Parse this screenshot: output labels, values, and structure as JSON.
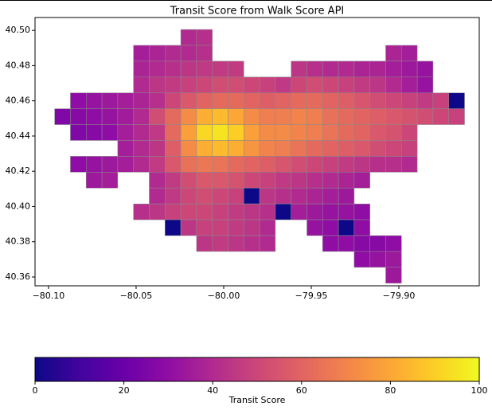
{
  "chart_data": {
    "type": "grid-map",
    "title": "Transit Score from Walk Score API",
    "colorbar_label": "Transit Score",
    "colormap": "plasma",
    "clim": [
      0,
      100
    ],
    "colorbar_ticks": [
      0,
      20,
      40,
      60,
      80,
      100
    ],
    "xlim": [
      -80.1077,
      -79.8541
    ],
    "ylim": [
      40.355,
      40.5073
    ],
    "xticks": [
      {
        "value": -80.1,
        "label": "−80.10"
      },
      {
        "value": -80.05,
        "label": "−80.05"
      },
      {
        "value": -80.0,
        "label": "−80.00"
      },
      {
        "value": -79.95,
        "label": "−79.95"
      },
      {
        "value": -79.9,
        "label": "−79.90"
      }
    ],
    "yticks": [
      {
        "value": 40.36,
        "label": "40.36"
      },
      {
        "value": 40.38,
        "label": "40.38"
      },
      {
        "value": 40.4,
        "label": "40.40"
      },
      {
        "value": 40.42,
        "label": "40.42"
      },
      {
        "value": 40.44,
        "label": "40.44"
      },
      {
        "value": 40.46,
        "label": "40.46"
      },
      {
        "value": 40.48,
        "label": "40.48"
      },
      {
        "value": 40.5,
        "label": "40.50"
      }
    ],
    "x": [
      -80.092,
      -80.083,
      -80.074,
      -80.065,
      -80.056,
      -80.047,
      -80.038,
      -80.029,
      -80.02,
      -80.011,
      -80.002,
      -79.993,
      -79.984,
      -79.975,
      -79.966,
      -79.957,
      -79.948,
      -79.939,
      -79.93,
      -79.921,
      -79.912,
      -79.903,
      -79.894,
      -79.885,
      -79.876,
      -79.867
    ],
    "y": [
      40.496,
      40.487,
      40.478,
      40.469,
      40.46,
      40.451,
      40.442,
      40.433,
      40.424,
      40.415,
      40.406,
      40.397,
      40.388,
      40.379,
      40.37,
      40.361
    ],
    "values": [
      [
        null,
        null,
        null,
        null,
        null,
        null,
        null,
        null,
        40,
        42,
        null,
        null,
        null,
        null,
        null,
        null,
        null,
        null,
        null,
        null,
        null,
        null,
        null,
        null,
        null,
        null
      ],
      [
        null,
        null,
        null,
        null,
        null,
        36,
        38,
        40,
        40,
        42,
        null,
        null,
        null,
        null,
        null,
        null,
        null,
        null,
        null,
        null,
        null,
        38,
        36,
        null,
        null,
        null
      ],
      [
        null,
        null,
        null,
        null,
        null,
        38,
        40,
        42,
        44,
        45,
        46,
        46,
        null,
        null,
        null,
        44,
        42,
        40,
        40,
        38,
        38,
        36,
        34,
        32,
        null,
        null
      ],
      [
        null,
        null,
        null,
        null,
        null,
        40,
        44,
        46,
        48,
        50,
        52,
        52,
        50,
        48,
        45,
        50,
        52,
        50,
        48,
        46,
        44,
        40,
        36,
        32,
        null,
        null
      ],
      [
        null,
        30,
        32,
        34,
        36,
        38,
        42,
        50,
        56,
        60,
        62,
        62,
        60,
        58,
        60,
        62,
        62,
        60,
        58,
        55,
        52,
        50,
        48,
        46,
        48,
        0
      ],
      [
        26,
        28,
        30,
        32,
        35,
        40,
        52,
        62,
        72,
        82,
        85,
        80,
        72,
        68,
        68,
        70,
        68,
        64,
        62,
        60,
        58,
        56,
        54,
        52,
        50,
        48
      ],
      [
        null,
        26,
        28,
        30,
        36,
        40,
        45,
        62,
        78,
        92,
        95,
        90,
        78,
        72,
        72,
        70,
        68,
        65,
        62,
        60,
        56,
        54,
        50,
        null,
        null,
        null
      ],
      [
        null,
        null,
        null,
        null,
        36,
        40,
        44,
        58,
        72,
        82,
        85,
        82,
        75,
        70,
        68,
        65,
        62,
        60,
        58,
        56,
        52,
        50,
        48,
        null,
        null,
        null
      ],
      [
        null,
        30,
        32,
        34,
        36,
        40,
        46,
        56,
        64,
        66,
        65,
        62,
        60,
        58,
        55,
        52,
        50,
        48,
        46,
        44,
        42,
        42,
        40,
        null,
        null,
        null
      ],
      [
        null,
        null,
        34,
        36,
        null,
        null,
        40,
        46,
        52,
        56,
        56,
        54,
        50,
        48,
        45,
        44,
        42,
        40,
        38,
        36,
        null,
        null,
        null,
        null,
        null,
        null
      ],
      [
        null,
        null,
        null,
        null,
        null,
        null,
        40,
        45,
        50,
        52,
        50,
        48,
        0,
        44,
        42,
        40,
        38,
        36,
        34,
        null,
        null,
        null,
        null,
        null,
        null,
        null
      ],
      [
        null,
        null,
        null,
        null,
        null,
        42,
        44,
        48,
        50,
        50,
        48,
        46,
        44,
        42,
        0,
        36,
        34,
        32,
        32,
        30,
        null,
        null,
        null,
        null,
        null,
        null
      ],
      [
        null,
        null,
        null,
        null,
        null,
        null,
        null,
        0,
        44,
        48,
        48,
        46,
        44,
        40,
        null,
        null,
        32,
        30,
        0,
        30,
        null,
        null,
        null,
        null,
        null,
        null
      ],
      [
        null,
        null,
        null,
        null,
        null,
        null,
        null,
        null,
        null,
        44,
        46,
        44,
        42,
        40,
        null,
        null,
        null,
        30,
        30,
        28,
        28,
        30,
        null,
        null,
        null,
        null
      ],
      [
        null,
        null,
        null,
        null,
        null,
        null,
        null,
        null,
        null,
        null,
        null,
        null,
        null,
        null,
        null,
        null,
        null,
        null,
        null,
        30,
        32,
        34,
        null,
        null,
        null,
        null
      ],
      [
        null,
        null,
        null,
        null,
        null,
        null,
        null,
        null,
        null,
        null,
        null,
        null,
        null,
        null,
        null,
        null,
        null,
        null,
        null,
        null,
        null,
        34,
        null,
        null,
        null,
        null
      ]
    ]
  }
}
